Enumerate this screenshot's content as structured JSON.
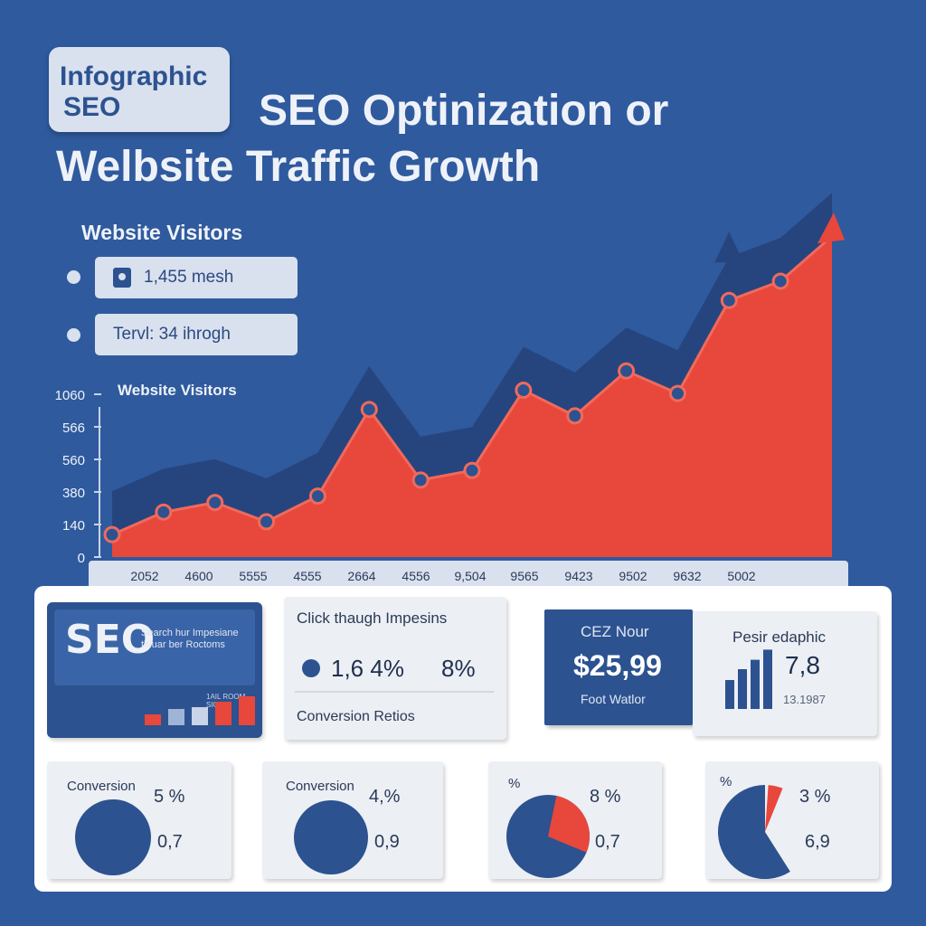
{
  "badge": {
    "line1": "Infographic",
    "line2": "SEO"
  },
  "title": {
    "line1": "SEO Optinization or",
    "line2": "Welbsite Traffic Growth"
  },
  "visitors_heading": "Website Visitors",
  "legend": [
    {
      "text": "1,455 mesh",
      "icon": "lock-icon"
    },
    {
      "text": "Tervl: 34 ihrogh"
    }
  ],
  "colors": {
    "background": "#2f5a9e",
    "area": "#e8473c",
    "navy": "#2c5290",
    "dark_band": "#26457e",
    "card": "#eceff4"
  },
  "chart_data": {
    "type": "area",
    "title": "Website Visitors",
    "y_ticks": [
      "0",
      "140",
      "380",
      "560",
      "566",
      "1060"
    ],
    "x_tick_labels": [
      "2052",
      "4600",
      "5555",
      "4555",
      "2664",
      "4556",
      "9,504",
      "9565",
      "9423",
      "9502",
      "9632",
      "5002"
    ],
    "series": [
      {
        "values": [
          70,
          140,
          170,
          110,
          190,
          460,
          240,
          270,
          520,
          440,
          580,
          510,
          800,
          860,
          1000
        ]
      }
    ],
    "ylim": [
      0,
      1060
    ],
    "grid": false,
    "legend": "top-left"
  },
  "cards": {
    "seo": {
      "word": "SEO",
      "subtitle": "Search hur Impesiane thiuar ber Roctoms",
      "mini_label": "1AIL ROOM SIG3",
      "bars": [
        12,
        18,
        20,
        26,
        32
      ]
    },
    "ctr": {
      "title": "Click thaugh Impesins",
      "value1": "1,6 4%",
      "value2": "8%",
      "footer": "Conversion Retios"
    },
    "revenue": {
      "title": "CEZ Nour",
      "value": "$25,99",
      "footer": "Foot Watlor"
    },
    "infographic": {
      "title": "Pesir edaphic",
      "value": "7,8",
      "sub": "13.1987",
      "bars": [
        40,
        55,
        68,
        82
      ]
    },
    "conv1": {
      "label": "Conversion",
      "pct": "5 %",
      "value": "0,7"
    },
    "conv2": {
      "label": "Conversion",
      "pct": "4,%",
      "value": "0,9"
    },
    "pie1": {
      "label": "%",
      "pct": "8 %",
      "value": "0,7",
      "red_fraction": 0.28
    },
    "pie2": {
      "label": "%",
      "pct": "3 %",
      "value": "6,9",
      "red_fraction": 0.05
    }
  }
}
